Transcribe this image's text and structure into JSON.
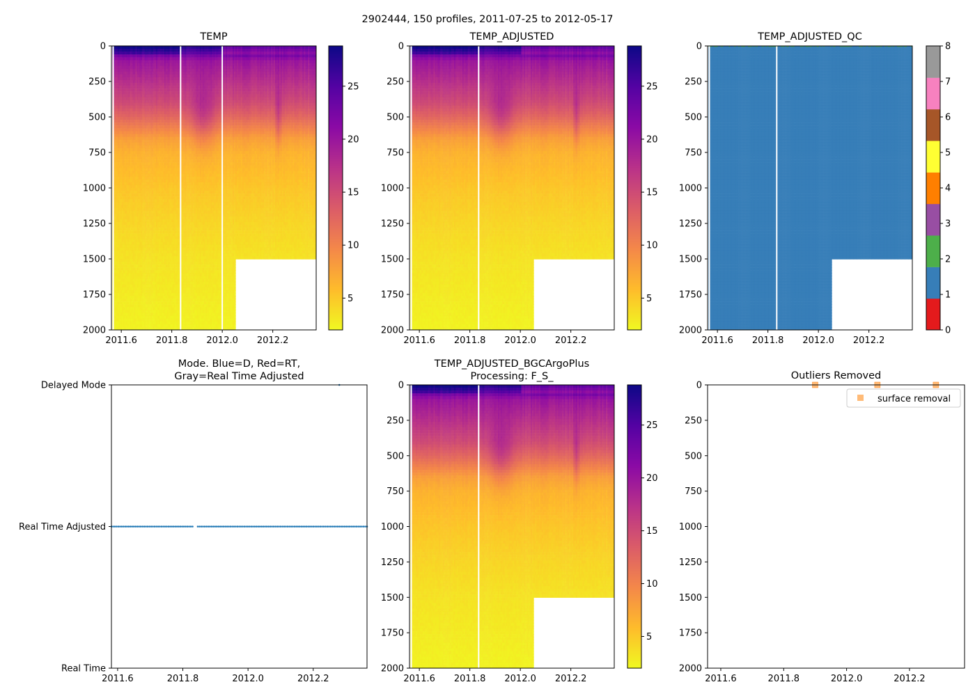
{
  "suptitle": "2902444, 150 profiles, 2011-07-25 to 2012-05-17",
  "colors": {
    "gap": "#ffffff",
    "mode_points": "#1f77b4",
    "outlier_marker": "#ffbb78",
    "outlier_marker_edge": "#ff7f0e"
  },
  "chart_data": [
    {
      "type": "heatmap",
      "title": "TEMP",
      "variable": "TEMP",
      "xlim": [
        2011.561,
        2012.372
      ],
      "xticks": [
        2011.6,
        2011.8,
        2012.0,
        2012.2
      ],
      "xtick_labels": [
        "2011.6",
        "2011.8",
        "2012.0",
        "2012.2"
      ],
      "ylim": [
        2000,
        0
      ],
      "yticks": [
        0,
        250,
        500,
        750,
        1000,
        1250,
        1500,
        1750,
        2000
      ],
      "ytick_labels": [
        "0",
        "250",
        "500",
        "750",
        "1000",
        "1250",
        "1500",
        "1750",
        "2000"
      ],
      "colormap": "plasma_r",
      "clim": [
        2.0,
        28.8
      ],
      "cbar_ticks": [
        5,
        10,
        15,
        20,
        25
      ],
      "cbar_tick_labels": [
        "5",
        "10",
        "15",
        "20",
        "25"
      ],
      "n_profiles": 150,
      "time_range": [
        2011.564,
        2012.372
      ],
      "mean_profile": {
        "depth": [
          0,
          50,
          100,
          250,
          400,
          500,
          650,
          750,
          1000,
          1250,
          1500,
          2000
        ],
        "temp": [
          27.5,
          24,
          20,
          17.5,
          15,
          12.5,
          8,
          6.5,
          5.2,
          4.2,
          3.4,
          2.4
        ]
      },
      "missing_gaps_time": [
        2011.568,
        2011.835,
        2012.0
      ],
      "no_data_region": {
        "time_from": 2012.05,
        "depth_from": 1500
      }
    },
    {
      "type": "heatmap",
      "title": "TEMP_ADJUSTED",
      "variable": "TEMP_ADJUSTED",
      "xlim": [
        2011.561,
        2012.372
      ],
      "xticks": [
        2011.6,
        2011.8,
        2012.0,
        2012.2
      ],
      "xtick_labels": [
        "2011.6",
        "2011.8",
        "2012.0",
        "2012.2"
      ],
      "ylim": [
        2000,
        0
      ],
      "yticks": [
        0,
        250,
        500,
        750,
        1000,
        1250,
        1500,
        1750,
        2000
      ],
      "ytick_labels": [
        "0",
        "250",
        "500",
        "750",
        "1000",
        "1250",
        "1500",
        "1750",
        "2000"
      ],
      "colormap": "plasma_r",
      "clim": [
        2.0,
        28.8
      ],
      "cbar_ticks": [
        5,
        10,
        15,
        20,
        25
      ],
      "cbar_tick_labels": [
        "5",
        "10",
        "15",
        "20",
        "25"
      ],
      "missing_gaps_time": [
        2011.568,
        2011.835
      ],
      "no_data_region": {
        "time_from": 2012.05,
        "depth_from": 1500
      }
    },
    {
      "type": "heatmap",
      "title": "TEMP_ADJUSTED_QC",
      "variable": "TEMP_ADJUSTED_QC",
      "xlim": [
        2011.561,
        2012.372
      ],
      "xticks": [
        2011.6,
        2011.8,
        2012.0,
        2012.2
      ],
      "xtick_labels": [
        "2011.6",
        "2011.8",
        "2012.0",
        "2012.2"
      ],
      "ylim": [
        2000,
        0
      ],
      "yticks": [
        0,
        250,
        500,
        750,
        1000,
        1250,
        1500,
        1750,
        2000
      ],
      "ytick_labels": [
        "0",
        "250",
        "500",
        "750",
        "1000",
        "1250",
        "1500",
        "1750",
        "2000"
      ],
      "colormap": "qc_categorical",
      "clim": [
        0,
        8
      ],
      "qc_colors": [
        "#e41a1c",
        "#377eb8",
        "#4daf4a",
        "#984ea3",
        "#ff7f00",
        "#ffff33",
        "#a65628",
        "#f781bf",
        "#999999"
      ],
      "cbar_ticks": [
        0,
        1,
        2,
        3,
        4,
        5,
        6,
        7,
        8
      ],
      "cbar_tick_labels": [
        "0",
        "1",
        "2",
        "3",
        "4",
        "5",
        "6",
        "7",
        "8"
      ],
      "dominant_value": 1,
      "surface_value": 2,
      "missing_gaps_time": [
        2011.568,
        2011.835
      ],
      "no_data_region": {
        "time_from": 2012.05,
        "depth_from": 1500
      }
    },
    {
      "type": "scatter",
      "title": "Mode. Blue=D, Red=RT,\nGray=Real Time Adjusted",
      "title_lines": [
        "Mode. Blue=D, Red=RT,",
        "Gray=Real Time Adjusted"
      ],
      "xlim": [
        2011.581,
        2012.365
      ],
      "xticks": [
        2011.6,
        2011.8,
        2012.0,
        2012.2
      ],
      "xtick_labels": [
        "2011.6",
        "2011.8",
        "2012.0",
        "2012.2"
      ],
      "ylim": [
        0,
        2
      ],
      "yticks": [
        0,
        1,
        2
      ],
      "ytick_labels": [
        "Real Time",
        "Real Time Adjusted",
        "Delayed Mode"
      ],
      "series": [
        {
          "name": "Real Time Adjusted",
          "y": 1,
          "x_range": [
            2011.581,
            2012.365
          ],
          "count": 149,
          "gap": [
            2011.83,
            2011.845
          ]
        },
        {
          "name": "Delayed Mode",
          "y": 2,
          "x": [
            2012.28
          ]
        }
      ]
    },
    {
      "type": "heatmap",
      "title": "TEMP_ADJUSTED_BGCArgoPlus\nProcessing: F_S_",
      "title_lines": [
        "TEMP_ADJUSTED_BGCArgoPlus",
        "Processing: F_S_"
      ],
      "variable": "TEMP_ADJUSTED_BGCArgoPlus",
      "xlim": [
        2011.561,
        2012.372
      ],
      "xticks": [
        2011.6,
        2011.8,
        2012.0,
        2012.2
      ],
      "xtick_labels": [
        "2011.6",
        "2011.8",
        "2012.0",
        "2012.2"
      ],
      "ylim": [
        2000,
        0
      ],
      "yticks": [
        0,
        250,
        500,
        750,
        1000,
        1250,
        1500,
        1750,
        2000
      ],
      "ytick_labels": [
        "0",
        "250",
        "500",
        "750",
        "1000",
        "1250",
        "1500",
        "1750",
        "2000"
      ],
      "colormap": "plasma_r",
      "clim": [
        2.0,
        28.8
      ],
      "cbar_ticks": [
        5,
        10,
        15,
        20,
        25
      ],
      "cbar_tick_labels": [
        "5",
        "10",
        "15",
        "20",
        "25"
      ],
      "missing_gaps_time": [
        2011.568,
        2011.835
      ],
      "no_data_region": {
        "time_from": 2012.05,
        "depth_from": 1500
      }
    },
    {
      "type": "scatter",
      "title": "Outliers Removed",
      "xlim": [
        2011.558,
        2012.375
      ],
      "xticks": [
        2011.6,
        2011.8,
        2012.0,
        2012.2
      ],
      "xtick_labels": [
        "2011.6",
        "2011.8",
        "2012.0",
        "2012.2"
      ],
      "ylim": [
        2000,
        0
      ],
      "yticks": [
        0,
        250,
        500,
        750,
        1000,
        1250,
        1500,
        1750,
        2000
      ],
      "ytick_labels": [
        "0",
        "250",
        "500",
        "750",
        "1000",
        "1250",
        "1500",
        "1750",
        "2000"
      ],
      "legend": {
        "entries": [
          "surface removal"
        ],
        "placement": "upper-right"
      },
      "series": [
        {
          "name": "surface removal",
          "x": [
            2011.9,
            2012.098,
            2012.284
          ],
          "y": [
            0,
            0,
            0
          ]
        }
      ]
    }
  ]
}
